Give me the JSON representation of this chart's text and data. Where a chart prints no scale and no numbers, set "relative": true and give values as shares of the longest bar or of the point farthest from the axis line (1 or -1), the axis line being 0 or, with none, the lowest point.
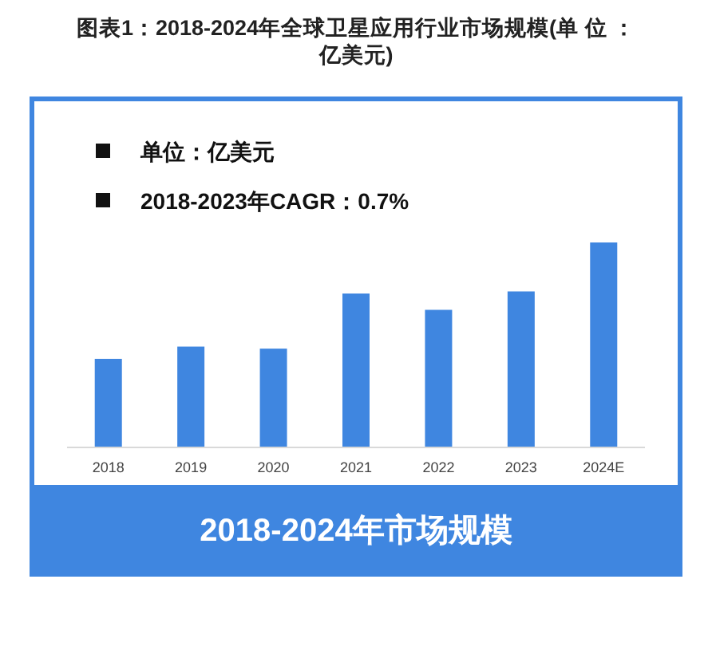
{
  "chart_data": {
    "type": "bar",
    "title": "图表1：2018-2024年全球卫星应用行业市场规模(单 位 ：亿美元)",
    "subtitle": "2018-2024年市场规模",
    "annotations": [
      "单位：亿美元",
      "2018-2023年CAGR：0.7%"
    ],
    "categories": [
      "2018",
      "2019",
      "2020",
      "2021",
      "2022",
      "2023",
      "2024E"
    ],
    "values": [
      0.43,
      0.49,
      0.48,
      0.75,
      0.67,
      0.76,
      1
    ],
    "color": "#3f86e0",
    "relative": true
  }
}
